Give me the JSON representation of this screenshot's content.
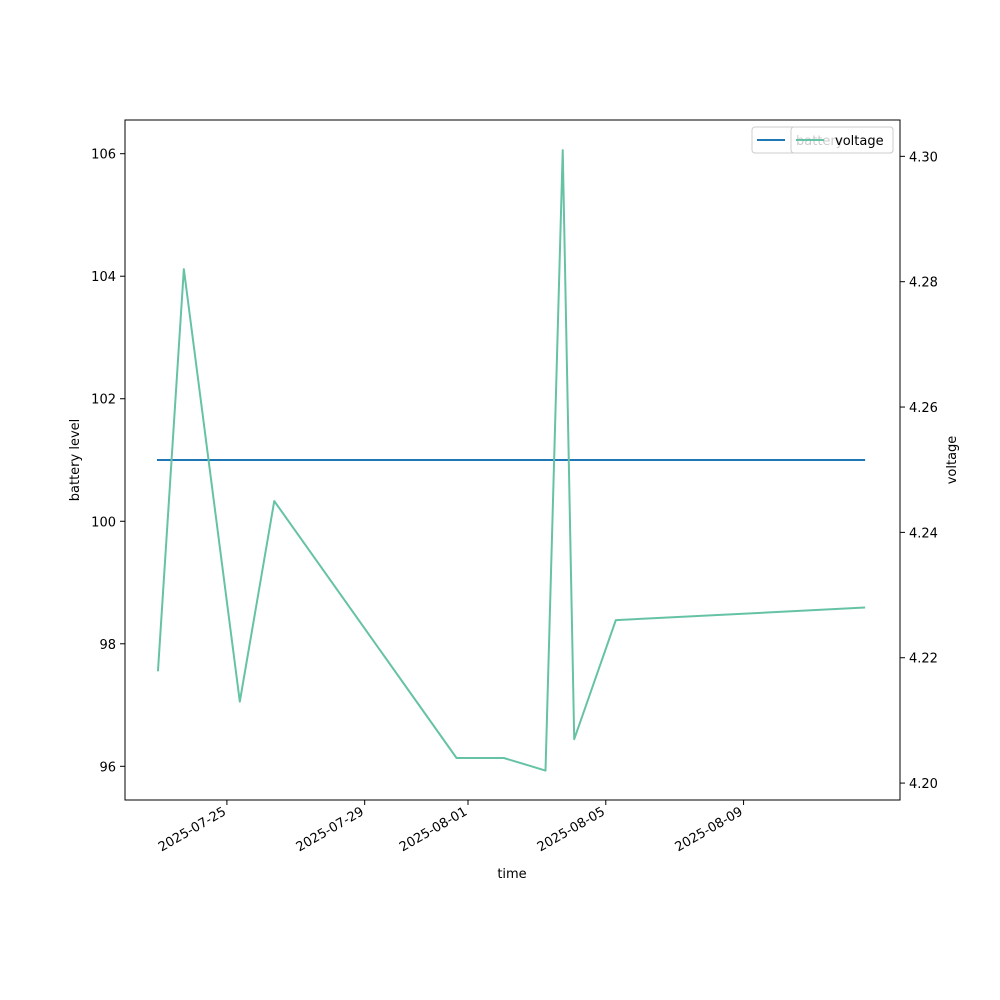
{
  "chart_data": {
    "type": "line",
    "title": "",
    "xlabel": "time",
    "ylabel_left": "battery level",
    "ylabel_right": "voltage",
    "x_ticks": [
      "2025-07-25",
      "2025-07-29",
      "2025-08-01",
      "2025-08-05",
      "2025-08-09"
    ],
    "x_tick_dates": [
      "2025-07-25",
      "2025-07-29",
      "2025-08-01",
      "2025-08-05",
      "2025-08-09"
    ],
    "xlim": [
      "2025-07-22T01:00",
      "2025-08-13T13:00"
    ],
    "ylim_left": [
      95.45,
      106.55
    ],
    "ylim_right": [
      4.1973,
      4.3058
    ],
    "y_ticks_left": [
      "96",
      "98",
      "100",
      "102",
      "104",
      "106"
    ],
    "y_ticks_right": [
      "4.20",
      "4.22",
      "4.24",
      "4.26",
      "4.28",
      "4.30"
    ],
    "grid": false,
    "legend_position": "top-right",
    "series": [
      {
        "name": "battery",
        "axis": "left",
        "color": "#1f77b4",
        "points": [
          {
            "x": "2025-07-23T00:00",
            "y": 101
          },
          {
            "x": "2025-08-12T12:00",
            "y": 101
          }
        ]
      },
      {
        "name": "voltage",
        "axis": "right",
        "color": "#66c2a5",
        "points": [
          {
            "x": "2025-07-23T00:00",
            "y": 4.218
          },
          {
            "x": "2025-07-23T18:00",
            "y": 4.282
          },
          {
            "x": "2025-07-25T09:00",
            "y": 4.213
          },
          {
            "x": "2025-07-26T09:00",
            "y": 4.245
          },
          {
            "x": "2025-07-31T16:00",
            "y": 4.204
          },
          {
            "x": "2025-08-02T01:00",
            "y": 4.204
          },
          {
            "x": "2025-08-03T06:00",
            "y": 4.202
          },
          {
            "x": "2025-08-03T18:00",
            "y": 4.301
          },
          {
            "x": "2025-08-04T02:00",
            "y": 4.207
          },
          {
            "x": "2025-08-05T07:00",
            "y": 4.226
          },
          {
            "x": "2025-08-12T12:00",
            "y": 4.228
          }
        ]
      }
    ]
  }
}
